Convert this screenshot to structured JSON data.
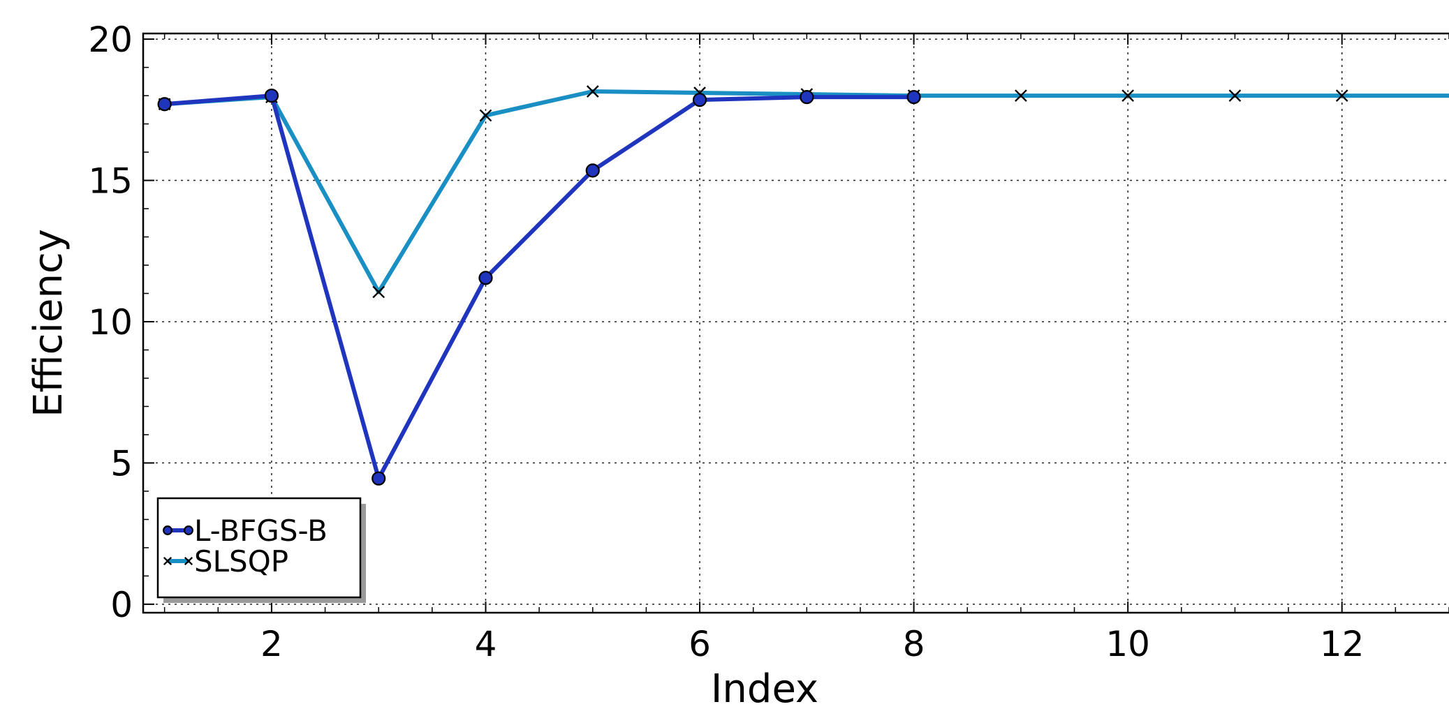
{
  "chart_data": {
    "type": "line",
    "title": "",
    "xlabel": "Index",
    "ylabel": "Efficiency",
    "xlim": [
      0.8,
      13.0
    ],
    "ylim": [
      -0.3,
      20.2
    ],
    "x_ticks": [
      2,
      4,
      6,
      8,
      10,
      12
    ],
    "y_ticks": [
      0,
      5,
      10,
      15,
      20
    ],
    "grid": true,
    "legend_position": "lower-left",
    "series": [
      {
        "name": "L-BFGS-B",
        "marker": "circle",
        "color": "#1f35be",
        "x": [
          1,
          2,
          3,
          4,
          5,
          6,
          7,
          8
        ],
        "y": [
          17.7,
          18.0,
          4.45,
          11.55,
          15.35,
          17.85,
          17.95,
          17.95
        ]
      },
      {
        "name": "SLSQP",
        "marker": "x",
        "color": "#1a8fc4",
        "x": [
          1,
          2,
          3,
          4,
          5,
          6,
          7,
          8,
          9,
          10,
          11,
          12,
          13
        ],
        "y": [
          17.7,
          17.95,
          11.05,
          17.3,
          18.15,
          18.1,
          18.05,
          18.0,
          18.0,
          18.0,
          18.0,
          18.0,
          18.0
        ]
      }
    ]
  }
}
